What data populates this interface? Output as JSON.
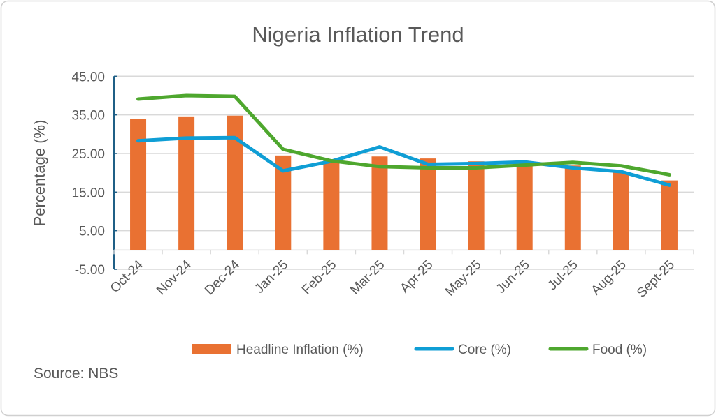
{
  "chart_data": {
    "type": "bar+line",
    "title": "Nigeria Inflation Trend",
    "xlabel": "",
    "ylabel": "Percentage (%)",
    "ylim": [
      -5,
      45
    ],
    "yticks": [
      "45.00",
      "35.00",
      "25.00",
      "15.00",
      "5.00",
      "-5.00"
    ],
    "ytick_values": [
      45,
      35,
      25,
      15,
      5,
      -5
    ],
    "grid": true,
    "legend_position": "bottom",
    "categories": [
      "Oct-24",
      "Nov-24",
      "Dec-24",
      "Jan-25",
      "Feb-25",
      "Mar-25",
      "Apr-25",
      "May-25",
      "Jun-25",
      "Jul-25",
      "Aug-25",
      "Sept-25"
    ],
    "series": [
      {
        "name": "Headline Inflation (%)",
        "type": "bar",
        "color": "#E97132",
        "values": [
          33.88,
          34.6,
          34.8,
          24.48,
          23.18,
          24.23,
          23.71,
          22.97,
          22.22,
          21.88,
          20.12,
          18.02
        ]
      },
      {
        "name": "Core (%)",
        "type": "line",
        "color": "#0F9ED5",
        "values": [
          28.3,
          29.0,
          29.1,
          20.5,
          23.0,
          26.7,
          22.2,
          22.4,
          22.8,
          21.3,
          20.3,
          16.8
        ]
      },
      {
        "name": "Food (%)",
        "type": "line",
        "color": "#4EA72E",
        "values": [
          39.1,
          40.0,
          39.8,
          26.1,
          23.1,
          21.6,
          21.3,
          21.3,
          22.0,
          22.7,
          21.8,
          19.5
        ]
      }
    ],
    "source": "Source: NBS"
  }
}
